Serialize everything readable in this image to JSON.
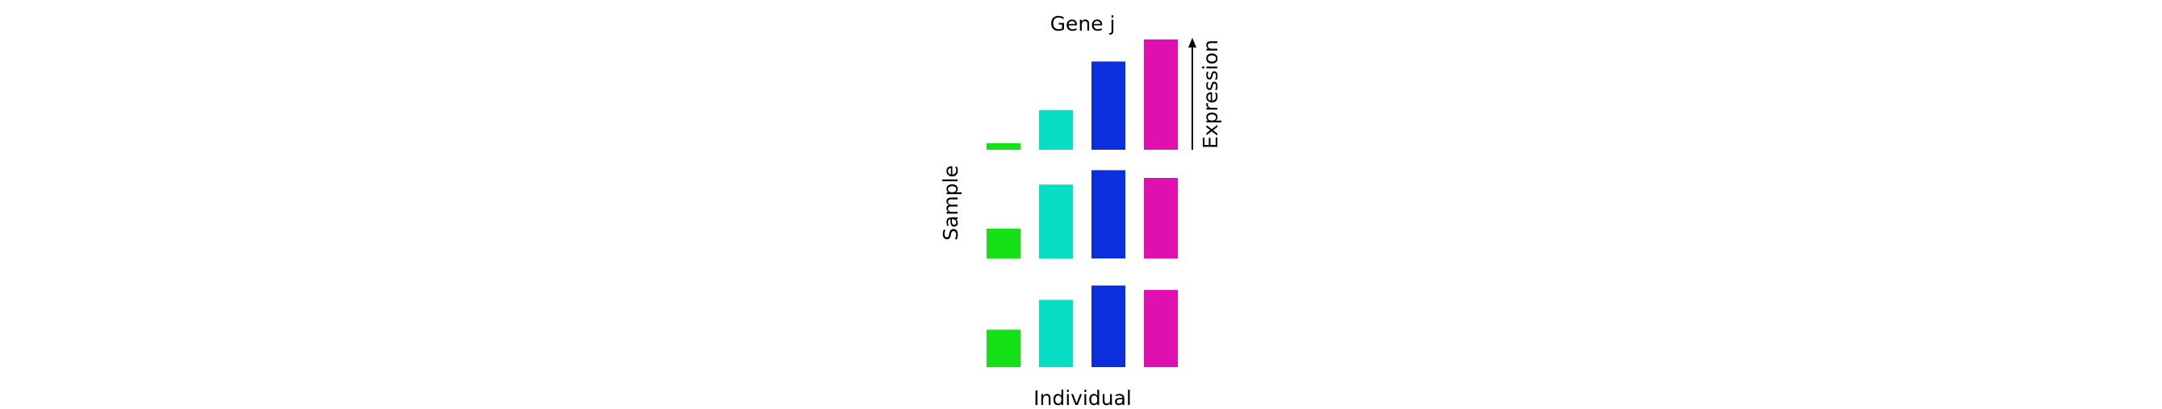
{
  "chart_data": {
    "type": "bar",
    "title": "Gene j",
    "xlabel": "Individual",
    "ylabel": "Sample",
    "expression_label": "Expression",
    "individuals": 4,
    "colors": [
      "#16e016",
      "#07dfc5",
      "#0b2fdc",
      "#e010b0"
    ],
    "ylim": [
      0,
      1
    ],
    "rows": [
      {
        "values": [
          0.06,
          0.36,
          0.8,
          1.0
        ]
      },
      {
        "values": [
          0.27,
          0.67,
          0.8,
          0.73
        ]
      },
      {
        "values": [
          0.34,
          0.61,
          0.74,
          0.7
        ]
      }
    ]
  }
}
